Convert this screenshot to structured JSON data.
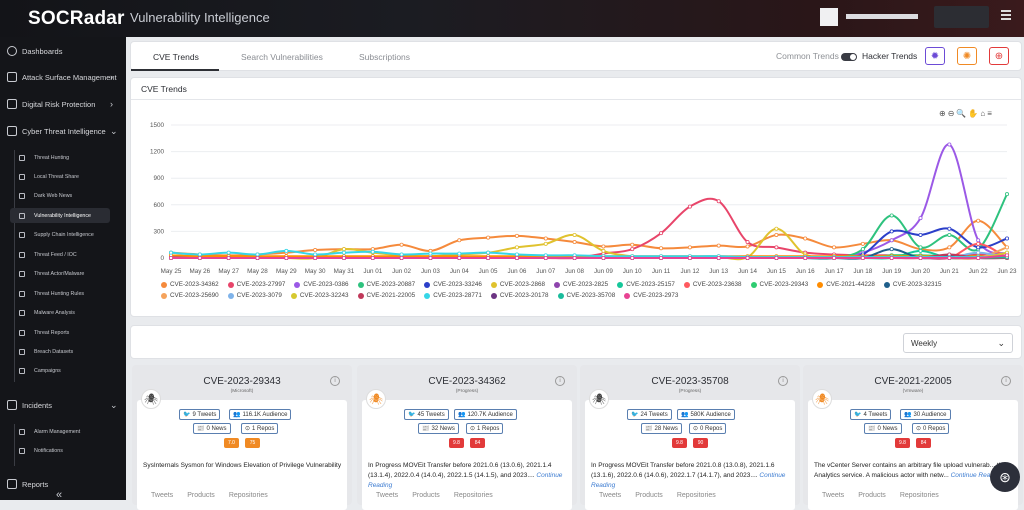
{
  "header": {
    "logo": "SOCRadar",
    "title": "Vulnerability Intelligence"
  },
  "sidebar": {
    "items": [
      {
        "label": "Dashboards"
      },
      {
        "label": "Attack Surface Management"
      },
      {
        "label": "Digital Risk Protection"
      },
      {
        "label": "Cyber Threat Intelligence"
      }
    ],
    "cti_sub": [
      "Threat Hunting",
      "Local Threat Share",
      "Dark Web News",
      "Vulnerability Intelligence",
      "Supply Chain Intelligence",
      "Threat Feed / IOC",
      "Threat Actor/Malware",
      "Threat Hunting Rules",
      "Malware Analysis",
      "Threat Reports",
      "Breach Datasets",
      "Campaigns"
    ],
    "incidents": "Incidents",
    "incident_sub": [
      "Alarm Management",
      "Notifications"
    ],
    "reports": "Reports"
  },
  "tabs": {
    "items": [
      "CVE Trends",
      "Search Vulnerabilities",
      "Subscriptions"
    ],
    "common": "Common Trends",
    "hacker": "Hacker Trends"
  },
  "chart_title": "CVE Trends",
  "chart_data": {
    "type": "line",
    "x": [
      "May 25",
      "May 26",
      "May 27",
      "May 28",
      "May 29",
      "May 30",
      "May 31",
      "Jun 01",
      "Jun 02",
      "Jun 03",
      "Jun 04",
      "Jun 05",
      "Jun 06",
      "Jun 07",
      "Jun 08",
      "Jun 09",
      "Jun 10",
      "Jun 11",
      "Jun 12",
      "Jun 13",
      "Jun 14",
      "Jun 15",
      "Jun 16",
      "Jun 17",
      "Jun 18",
      "Jun 19",
      "Jun 20",
      "Jun 21",
      "Jun 22",
      "Jun 23"
    ],
    "ylim": [
      0,
      1500
    ],
    "yticks": [
      0,
      300,
      600,
      900,
      1200,
      1500
    ],
    "legend": "bottom",
    "series": [
      {
        "name": "CVE-2023-34362",
        "color": "#f58a3c",
        "values": [
          60,
          40,
          30,
          40,
          60,
          90,
          100,
          100,
          150,
          80,
          200,
          230,
          250,
          220,
          180,
          130,
          150,
          110,
          120,
          140,
          130,
          260,
          220,
          120,
          160,
          200,
          100,
          120,
          420,
          120
        ]
      },
      {
        "name": "CVE-2023-27997",
        "color": "#e8456a",
        "values": [
          0,
          0,
          0,
          0,
          0,
          0,
          0,
          0,
          0,
          0,
          0,
          0,
          0,
          0,
          0,
          50,
          100,
          280,
          580,
          640,
          180,
          120,
          60,
          40,
          30,
          30,
          20,
          20,
          40,
          20
        ]
      },
      {
        "name": "CVE-2023-0386",
        "color": "#9b59e6",
        "values": [
          0,
          0,
          0,
          0,
          0,
          0,
          0,
          0,
          0,
          0,
          0,
          0,
          0,
          0,
          0,
          0,
          0,
          0,
          0,
          0,
          0,
          0,
          0,
          0,
          60,
          200,
          450,
          1280,
          200,
          50
        ]
      },
      {
        "name": "CVE-2023-20887",
        "color": "#2ec27e",
        "values": [
          0,
          0,
          0,
          0,
          0,
          0,
          0,
          0,
          0,
          0,
          0,
          0,
          0,
          0,
          0,
          0,
          0,
          0,
          0,
          0,
          0,
          0,
          0,
          0,
          100,
          480,
          120,
          260,
          100,
          720
        ]
      },
      {
        "name": "CVE-2023-33246",
        "color": "#2b3fc9",
        "values": [
          0,
          0,
          0,
          0,
          0,
          0,
          0,
          0,
          0,
          0,
          0,
          0,
          0,
          0,
          0,
          0,
          0,
          0,
          0,
          0,
          0,
          0,
          0,
          0,
          40,
          300,
          260,
          330,
          120,
          220
        ]
      },
      {
        "name": "CVE-2023-2868",
        "color": "#e0c22e",
        "values": [
          0,
          0,
          0,
          0,
          0,
          0,
          100,
          60,
          30,
          20,
          40,
          60,
          120,
          160,
          260,
          80,
          20,
          10,
          10,
          10,
          10,
          330,
          40,
          20,
          10,
          10,
          10,
          10,
          10,
          10
        ]
      },
      {
        "name": "CVE-2023-2825",
        "color": "#8e44ad",
        "values": [
          20,
          10,
          10,
          10,
          10,
          10,
          10,
          10,
          10,
          10,
          10,
          10,
          10,
          10,
          10,
          10,
          10,
          10,
          10,
          10,
          10,
          10,
          10,
          10,
          10,
          10,
          10,
          10,
          10,
          10
        ]
      },
      {
        "name": "CVE-2023-25157",
        "color": "#16c79a",
        "values": [
          0,
          0,
          0,
          0,
          0,
          0,
          0,
          0,
          0,
          0,
          0,
          0,
          0,
          0,
          0,
          0,
          0,
          0,
          0,
          0,
          0,
          0,
          0,
          0,
          0,
          0,
          80,
          0,
          0,
          0
        ]
      },
      {
        "name": "CVE-2023-23638",
        "color": "#ff5a5f",
        "values": [
          0,
          0,
          0,
          0,
          0,
          0,
          0,
          0,
          0,
          0,
          0,
          0,
          0,
          0,
          0,
          0,
          0,
          0,
          0,
          0,
          0,
          0,
          0,
          0,
          0,
          0,
          0,
          0,
          160,
          0
        ]
      },
      {
        "name": "CVE-2023-29343",
        "color": "#2ecc71",
        "values": [
          0,
          0,
          0,
          0,
          0,
          0,
          0,
          0,
          0,
          0,
          0,
          0,
          0,
          0,
          0,
          0,
          0,
          0,
          0,
          0,
          0,
          0,
          0,
          0,
          0,
          30,
          30,
          20,
          20,
          10
        ]
      },
      {
        "name": "CVE-2021-44228",
        "color": "#ff8c00",
        "values": [
          30,
          20,
          20,
          20,
          20,
          20,
          20,
          20,
          20,
          20,
          20,
          20,
          20,
          20,
          20,
          20,
          20,
          20,
          20,
          20,
          20,
          20,
          20,
          20,
          20,
          20,
          20,
          20,
          20,
          20
        ]
      },
      {
        "name": "CVE-2023-32315",
        "color": "#1f5f8b",
        "values": [
          0,
          0,
          0,
          0,
          0,
          0,
          0,
          0,
          0,
          0,
          0,
          0,
          0,
          0,
          0,
          0,
          0,
          0,
          0,
          0,
          0,
          0,
          0,
          0,
          0,
          100,
          0,
          20,
          0,
          0
        ]
      },
      {
        "name": "CVE-2023-25690",
        "color": "#f5a35c",
        "values": [
          0,
          0,
          0,
          0,
          0,
          0,
          0,
          0,
          0,
          0,
          0,
          0,
          0,
          0,
          0,
          0,
          0,
          0,
          0,
          0,
          0,
          0,
          0,
          0,
          0,
          0,
          0,
          0,
          0,
          120
        ]
      },
      {
        "name": "CVE-2023-3079",
        "color": "#7fb3ea",
        "values": [
          0,
          0,
          0,
          0,
          0,
          0,
          0,
          0,
          0,
          0,
          0,
          0,
          0,
          0,
          0,
          0,
          0,
          0,
          0,
          0,
          0,
          0,
          0,
          0,
          0,
          0,
          0,
          0,
          60,
          0
        ]
      },
      {
        "name": "CVE-2023-32243",
        "color": "#d6c930",
        "values": [
          0,
          0,
          0,
          0,
          0,
          0,
          0,
          0,
          0,
          0,
          0,
          0,
          0,
          0,
          0,
          0,
          0,
          0,
          0,
          0,
          0,
          0,
          0,
          0,
          0,
          0,
          0,
          0,
          0,
          60
        ]
      },
      {
        "name": "CVE-2021-22005",
        "color": "#c0395a",
        "values": [
          0,
          0,
          0,
          0,
          0,
          0,
          0,
          0,
          0,
          0,
          0,
          0,
          0,
          0,
          0,
          0,
          0,
          0,
          0,
          0,
          0,
          0,
          0,
          0,
          0,
          0,
          0,
          40,
          0,
          0
        ]
      },
      {
        "name": "CVE-2023-28771",
        "color": "#36d6e7",
        "values": [
          60,
          40,
          60,
          40,
          80,
          40,
          60,
          70,
          40,
          50,
          50,
          60,
          40,
          30,
          30,
          20,
          20,
          20,
          20,
          20,
          10,
          10,
          10,
          10,
          10,
          10,
          10,
          10,
          10,
          10
        ]
      },
      {
        "name": "CVE-2023-20178",
        "color": "#6c3483",
        "values": [
          0,
          0,
          0,
          0,
          0,
          0,
          0,
          0,
          0,
          0,
          0,
          0,
          0,
          0,
          0,
          0,
          0,
          0,
          0,
          0,
          0,
          0,
          0,
          0,
          0,
          0,
          0,
          0,
          0,
          20
        ]
      },
      {
        "name": "CVE-2023-35708",
        "color": "#1abc9c",
        "values": [
          0,
          0,
          0,
          0,
          0,
          0,
          0,
          0,
          0,
          0,
          0,
          0,
          0,
          0,
          0,
          0,
          0,
          0,
          0,
          0,
          0,
          0,
          0,
          0,
          0,
          0,
          0,
          0,
          0,
          10
        ]
      },
      {
        "name": "CVE-2023-2973",
        "color": "#e84393",
        "values": [
          0,
          0,
          0,
          0,
          0,
          0,
          0,
          0,
          0,
          0,
          0,
          0,
          0,
          0,
          0,
          0,
          0,
          0,
          0,
          0,
          0,
          0,
          0,
          0,
          0,
          0,
          0,
          0,
          0,
          30
        ]
      }
    ]
  },
  "period": "Weekly",
  "cves": [
    {
      "id": "CVE-2023-29343",
      "vendor": "(Microsoft)",
      "tweets": "9 Tweets",
      "audience": "116.1K Audience",
      "news": "0 News",
      "repos": "1 Repos",
      "s1": "7.0",
      "s2": "75",
      "c1": "#f08a24",
      "c2": "#f08a24",
      "desc": "SysInternals Sysmon for Windows Elevation of Privilege Vulnerability",
      "cont": "",
      "avatar_color": "#444"
    },
    {
      "id": "CVE-2023-34362",
      "vendor": "(Progress)",
      "tweets": "45 Tweets",
      "audience": "120.7K Audience",
      "news": "32 News",
      "repos": "1 Repos",
      "s1": "9.8",
      "s2": "84",
      "c1": "#e23a3a",
      "c2": "#e23a3a",
      "desc": "In Progress MOVEit Transfer before 2021.0.6 (13.0.6), 2021.1.4 (13.1.4), 2022.0.4 (14.0.4), 2022.1.5 (14.1.5), and 2023....",
      "cont": "Continue Reading",
      "avatar_color": "#f08a24"
    },
    {
      "id": "CVE-2023-35708",
      "vendor": "(Progress)",
      "tweets": "24 Tweets",
      "audience": "580K Audience",
      "news": "28 News",
      "repos": "0 Repos",
      "s1": "9.8",
      "s2": "90",
      "c1": "#e23a3a",
      "c2": "#e23a3a",
      "desc": "In Progress MOVEit Transfer before 2021.0.8 (13.0.8), 2021.1.6 (13.1.6), 2022.0.6 (14.0.6), 2022.1.7 (14.1.7), and 2023....",
      "cont": "Continue Reading",
      "avatar_color": "#444"
    },
    {
      "id": "CVE-2021-22005",
      "vendor": "(Vmware)",
      "tweets": "4 Tweets",
      "audience": "30 Audience",
      "news": "0 News",
      "repos": "0 Repos",
      "s1": "9.8",
      "s2": "84",
      "c1": "#e23a3a",
      "c2": "#e23a3a",
      "desc": "The vCenter Server contains an arbitrary file upload vulnerab... the Analytics service. A malicious actor with netw...",
      "cont": "Continue Reading",
      "avatar_color": "#f08a24"
    }
  ],
  "card_tabs": [
    "Tweets",
    "Products",
    "Repositories"
  ]
}
